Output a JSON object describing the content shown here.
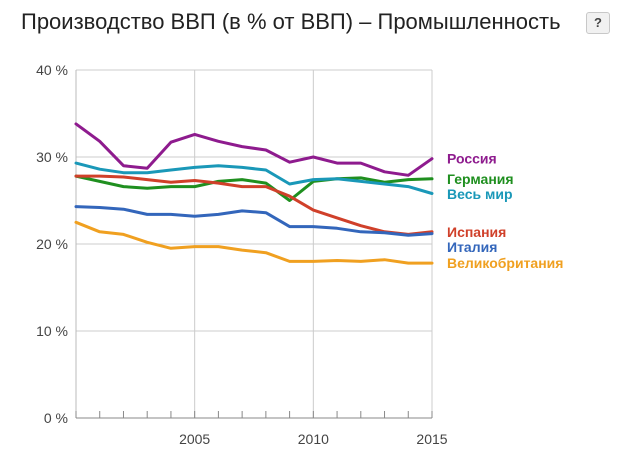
{
  "header": {
    "title": "Производство ВВП (в % от ВВП) – Промышленность",
    "help_label": "?"
  },
  "chart_data": {
    "type": "line",
    "title": "Производство ВВП (в % от ВВП) – Промышленность",
    "xlabel": "",
    "ylabel": "",
    "x": [
      2000,
      2001,
      2002,
      2003,
      2004,
      2005,
      2006,
      2007,
      2008,
      2009,
      2010,
      2011,
      2012,
      2013,
      2014,
      2015
    ],
    "xlim": [
      2000,
      2015
    ],
    "ylim": [
      0,
      40
    ],
    "x_ticks": [
      2005,
      2010,
      2015
    ],
    "x_tick_labels": [
      "2005",
      "2010",
      "2015"
    ],
    "y_ticks": [
      0,
      10,
      20,
      30,
      40
    ],
    "y_tick_labels": [
      "0 %",
      "10 %",
      "20 %",
      "30 %",
      "40 %"
    ],
    "grid": true,
    "legend": "right, at line ends",
    "series": [
      {
        "name": "Россия",
        "color": "#8e1b8e",
        "values": [
          33.8,
          31.8,
          29.0,
          28.7,
          31.7,
          32.6,
          31.8,
          31.2,
          30.8,
          29.4,
          30.0,
          29.3,
          29.3,
          28.3,
          27.9,
          29.8
        ]
      },
      {
        "name": "Германия",
        "color": "#1f8f1f",
        "values": [
          27.8,
          27.2,
          26.6,
          26.4,
          26.6,
          26.6,
          27.2,
          27.4,
          27.0,
          25.0,
          27.2,
          27.5,
          27.6,
          27.1,
          27.4,
          27.5
        ]
      },
      {
        "name": "Весь мир",
        "color": "#1a98b8",
        "values": [
          29.3,
          28.6,
          28.2,
          28.2,
          28.5,
          28.8,
          29.0,
          28.8,
          28.5,
          26.9,
          27.4,
          27.5,
          27.2,
          26.9,
          26.6,
          25.8
        ]
      },
      {
        "name": "Испания",
        "color": "#d0402a",
        "values": [
          27.8,
          27.8,
          27.7,
          27.4,
          27.1,
          27.3,
          27.0,
          26.6,
          26.6,
          25.5,
          23.9,
          23.0,
          22.1,
          21.4,
          21.1,
          21.4
        ]
      },
      {
        "name": "Италия",
        "color": "#3366bb",
        "values": [
          24.3,
          24.2,
          24.0,
          23.4,
          23.4,
          23.2,
          23.4,
          23.8,
          23.6,
          22.0,
          22.0,
          21.8,
          21.4,
          21.3,
          21.0,
          21.2
        ]
      },
      {
        "name": "Великобритания",
        "color": "#f0a020",
        "values": [
          22.5,
          21.4,
          21.1,
          20.2,
          19.5,
          19.7,
          19.7,
          19.3,
          19.0,
          18.0,
          18.0,
          18.1,
          18.0,
          18.2,
          17.8,
          17.8
        ]
      }
    ]
  }
}
